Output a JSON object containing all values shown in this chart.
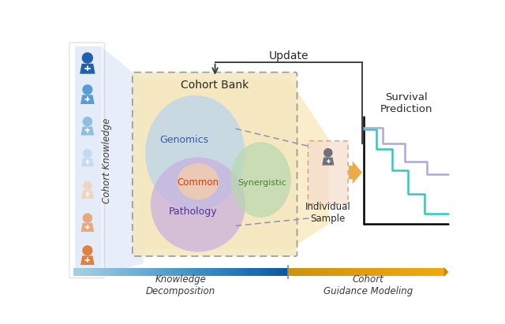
{
  "bg_color": "#ffffff",
  "person_colors": [
    "#2060b0",
    "#5b9bd5",
    "#91bee0",
    "#c5daf0",
    "#f2d5bf",
    "#e8a87c",
    "#e08040"
  ],
  "cohort_knowledge_label": "Cohort Knowledge",
  "cohort_bank_label": "Cohort Bank",
  "genomics_label": "Genomics",
  "pathology_label": "Pathology",
  "common_label": "Common",
  "synergistic_label": "Synergistic",
  "individual_sample_label": "Individual\nSample",
  "survival_prediction_label": "Survival\nPrediction",
  "knowledge_decomposition_label": "Knowledge\nDecomposition",
  "cohort_guidance_label": "Cohort\nGuidance Modeling",
  "update_label": "Update",
  "genomics_color": "#b8d4f0",
  "pathology_color": "#c8b0e0",
  "common_color": "#f0cdb0",
  "synergistic_color": "#b8d8b0",
  "cohort_bank_bg": "#f5e8c0",
  "blue_trap_color": "#d0def5",
  "curve1_color": "#30c8c0",
  "curve2_color": "#b0a8d8",
  "orange_arrow_color": "#e8a030",
  "person_icon_color": "#686878",
  "individual_box_color": "#f5dece",
  "dashed_line_color": "#9090b8"
}
